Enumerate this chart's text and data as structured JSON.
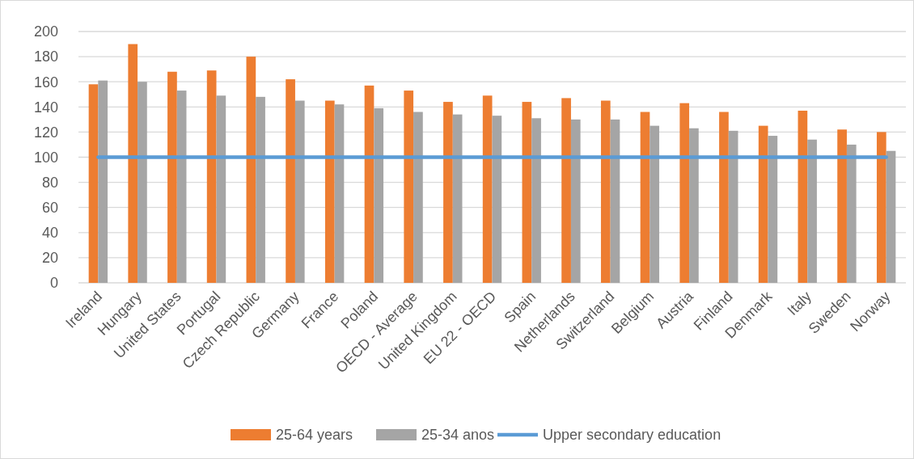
{
  "chart_data": {
    "type": "bar",
    "categories": [
      "Ireland",
      "Hungary",
      "United States",
      "Portugal",
      "Czech Republic",
      "Germany",
      "France",
      "Poland",
      "OECD - Average",
      "United Kingdom",
      "EU 22 - OECD",
      "Spain",
      "Netherlands",
      "Switzerland",
      "Belgium",
      "Austria",
      "Finland",
      "Denmark",
      "Italy",
      "Sweden",
      "Norway"
    ],
    "series": [
      {
        "name": "25-64 years",
        "color": "#ed7d31",
        "values": [
          158,
          190,
          168,
          169,
          180,
          162,
          145,
          157,
          153,
          144,
          149,
          144,
          147,
          145,
          136,
          143,
          136,
          125,
          137,
          122,
          120
        ]
      },
      {
        "name": "25-34 anos",
        "color": "#a5a5a5",
        "values": [
          161,
          160,
          153,
          149,
          148,
          145,
          142,
          139,
          136,
          134,
          133,
          131,
          130,
          130,
          125,
          123,
          121,
          117,
          114,
          110,
          105
        ]
      },
      {
        "name": "Upper secondary education",
        "type": "line",
        "color": "#5b9bd5",
        "values": [
          100,
          100,
          100,
          100,
          100,
          100,
          100,
          100,
          100,
          100,
          100,
          100,
          100,
          100,
          100,
          100,
          100,
          100,
          100,
          100,
          100
        ]
      }
    ],
    "ylim": [
      0,
      200
    ],
    "yticks": [
      0,
      20,
      40,
      60,
      80,
      100,
      120,
      140,
      160,
      180,
      200
    ],
    "grid": "y",
    "legend": "bottom"
  }
}
